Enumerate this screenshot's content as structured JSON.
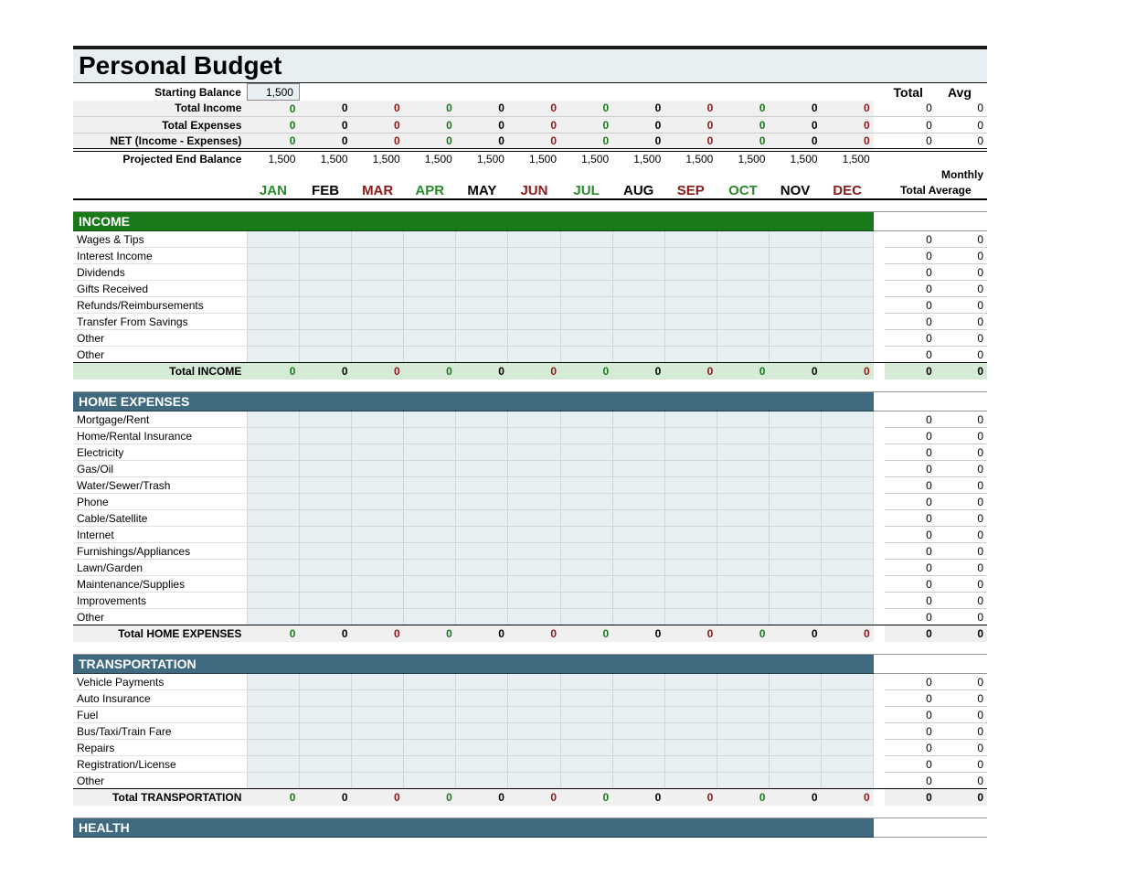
{
  "title": "Personal Budget",
  "colors": {
    "title_bg": "#e8eff2",
    "cell_bg": "#e8eff2",
    "income_bar": "#1a7a1a",
    "section_bar": "#3f6a80",
    "income_total_bg": "#d6ebd6",
    "gray_total_bg": "#f0f0f0"
  },
  "months": [
    {
      "label": "JAN",
      "color": "#2a8a2a"
    },
    {
      "label": "FEB",
      "color": "#000000"
    },
    {
      "label": "MAR",
      "color": "#8a1a1a"
    },
    {
      "label": "APR",
      "color": "#2a8a2a"
    },
    {
      "label": "MAY",
      "color": "#000000"
    },
    {
      "label": "JUN",
      "color": "#8a1a1a"
    },
    {
      "label": "JUL",
      "color": "#2a8a2a"
    },
    {
      "label": "AUG",
      "color": "#000000"
    },
    {
      "label": "SEP",
      "color": "#8a1a1a"
    },
    {
      "label": "OCT",
      "color": "#2a8a2a"
    },
    {
      "label": "NOV",
      "color": "#000000"
    },
    {
      "label": "DEC",
      "color": "#8a1a1a"
    }
  ],
  "summary": {
    "starting_balance_label": "Starting Balance",
    "starting_balance": "1,500",
    "total_label": "Total",
    "avg_label": "Avg",
    "monthly_label": "Monthly",
    "total_average_label": "Total Average",
    "rows": [
      {
        "label": "Total Income",
        "values": [
          "0",
          "0",
          "0",
          "0",
          "0",
          "0",
          "0",
          "0",
          "0",
          "0",
          "0",
          "0"
        ],
        "total": "0",
        "avg": "0"
      },
      {
        "label": "Total Expenses",
        "values": [
          "0",
          "0",
          "0",
          "0",
          "0",
          "0",
          "0",
          "0",
          "0",
          "0",
          "0",
          "0"
        ],
        "total": "0",
        "avg": "0"
      },
      {
        "label": "NET (Income - Expenses)",
        "values": [
          "0",
          "0",
          "0",
          "0",
          "0",
          "0",
          "0",
          "0",
          "0",
          "0",
          "0",
          "0"
        ],
        "total": "0",
        "avg": "0"
      },
      {
        "label": "Projected End Balance",
        "values": [
          "1,500",
          "1,500",
          "1,500",
          "1,500",
          "1,500",
          "1,500",
          "1,500",
          "1,500",
          "1,500",
          "1,500",
          "1,500",
          "1,500"
        ],
        "total": "",
        "avg": ""
      }
    ]
  },
  "month_colors_pattern": [
    "#1a7a1a",
    "#000000",
    "#8a1a1a"
  ],
  "sections": [
    {
      "name": "INCOME",
      "bar_color": "#1a7a1a",
      "total_style": "income",
      "items": [
        "Wages & Tips",
        "Interest Income",
        "Dividends",
        "Gifts Received",
        "Refunds/Reimbursements",
        "Transfer From Savings",
        "Other",
        "Other"
      ],
      "item_totals": [
        "0",
        "0",
        "0",
        "0",
        "0",
        "0",
        "0",
        "0"
      ],
      "item_avgs": [
        "0",
        "0",
        "0",
        "0",
        "0",
        "0",
        "0",
        "0"
      ],
      "total_label": "Total INCOME",
      "totals": [
        "0",
        "0",
        "0",
        "0",
        "0",
        "0",
        "0",
        "0",
        "0",
        "0",
        "0",
        "0"
      ],
      "grand_total": "0",
      "grand_avg": "0"
    },
    {
      "name": "HOME EXPENSES",
      "bar_color": "#3f6a80",
      "total_style": "plain",
      "items": [
        "Mortgage/Rent",
        "Home/Rental Insurance",
        "Electricity",
        "Gas/Oil",
        "Water/Sewer/Trash",
        "Phone",
        "Cable/Satellite",
        "Internet",
        "Furnishings/Appliances",
        "Lawn/Garden",
        "Maintenance/Supplies",
        "Improvements",
        "Other"
      ],
      "item_totals": [
        "0",
        "0",
        "0",
        "0",
        "0",
        "0",
        "0",
        "0",
        "0",
        "0",
        "0",
        "0",
        "0"
      ],
      "item_avgs": [
        "0",
        "0",
        "0",
        "0",
        "0",
        "0",
        "0",
        "0",
        "0",
        "0",
        "0",
        "0",
        "0"
      ],
      "total_label": "Total HOME EXPENSES",
      "totals": [
        "0",
        "0",
        "0",
        "0",
        "0",
        "0",
        "0",
        "0",
        "0",
        "0",
        "0",
        "0"
      ],
      "grand_total": "0",
      "grand_avg": "0"
    },
    {
      "name": "TRANSPORTATION",
      "bar_color": "#3f6a80",
      "total_style": "plain",
      "items": [
        "Vehicle Payments",
        "Auto Insurance",
        "Fuel",
        "Bus/Taxi/Train Fare",
        "Repairs",
        "Registration/License",
        "Other"
      ],
      "item_totals": [
        "0",
        "0",
        "0",
        "0",
        "0",
        "0",
        "0"
      ],
      "item_avgs": [
        "0",
        "0",
        "0",
        "0",
        "0",
        "0",
        "0"
      ],
      "total_label": "Total TRANSPORTATION",
      "totals": [
        "0",
        "0",
        "0",
        "0",
        "0",
        "0",
        "0",
        "0",
        "0",
        "0",
        "0",
        "0"
      ],
      "grand_total": "0",
      "grand_avg": "0"
    },
    {
      "name": "HEALTH",
      "bar_color": "#3f6a80",
      "total_style": "plain",
      "items": [],
      "item_totals": [],
      "item_avgs": [],
      "total_label": "",
      "totals": [],
      "grand_total": "",
      "grand_avg": ""
    }
  ]
}
